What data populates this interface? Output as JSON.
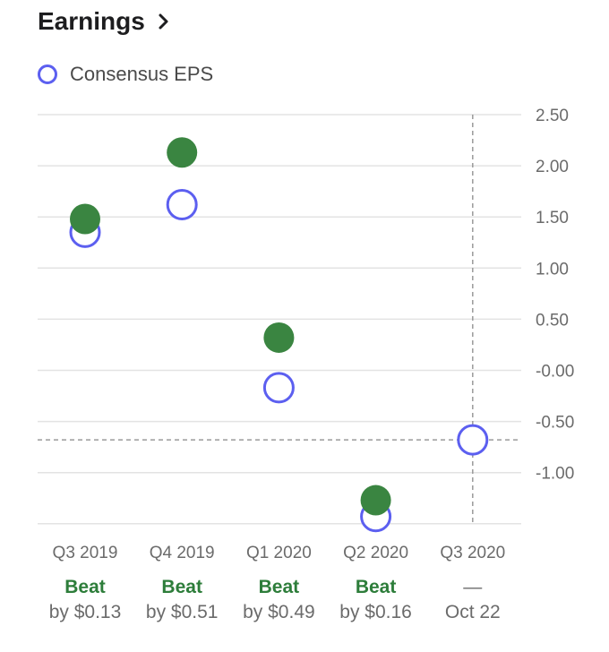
{
  "header": {
    "title": "Earnings"
  },
  "legend": {
    "label": "Consensus EPS"
  },
  "colors": {
    "consensus": "#5c5ff0",
    "actual": "#3a8541",
    "beat": "#2d7d3a",
    "grid": "#e3e3e3",
    "text": "#6b6b6b"
  },
  "chart_data": {
    "type": "scatter",
    "title": "Earnings",
    "ylim": [
      -1.5,
      2.5
    ],
    "yticks": [
      "2.50",
      "2.00",
      "1.50",
      "1.00",
      "0.50",
      "-0.00",
      "-0.50",
      "-1.00"
    ],
    "ytick_values": [
      2.5,
      2.0,
      1.5,
      1.0,
      0.5,
      0.0,
      -0.5,
      -1.0
    ],
    "categories": [
      "Q3 2019",
      "Q4 2019",
      "Q1 2020",
      "Q2 2020",
      "Q3 2020"
    ],
    "series": [
      {
        "name": "Consensus EPS",
        "values": [
          1.35,
          1.62,
          -0.17,
          -1.43,
          -0.68
        ]
      },
      {
        "values": [
          1.48,
          2.13,
          0.32,
          -1.27,
          null
        ]
      }
    ],
    "status": [
      "Beat",
      "Beat",
      "Beat",
      "Beat",
      "—"
    ],
    "details": [
      "by $0.13",
      "by $0.51",
      "by $0.49",
      "by $0.16",
      "Oct 22"
    ],
    "reference_value": -0.68
  }
}
